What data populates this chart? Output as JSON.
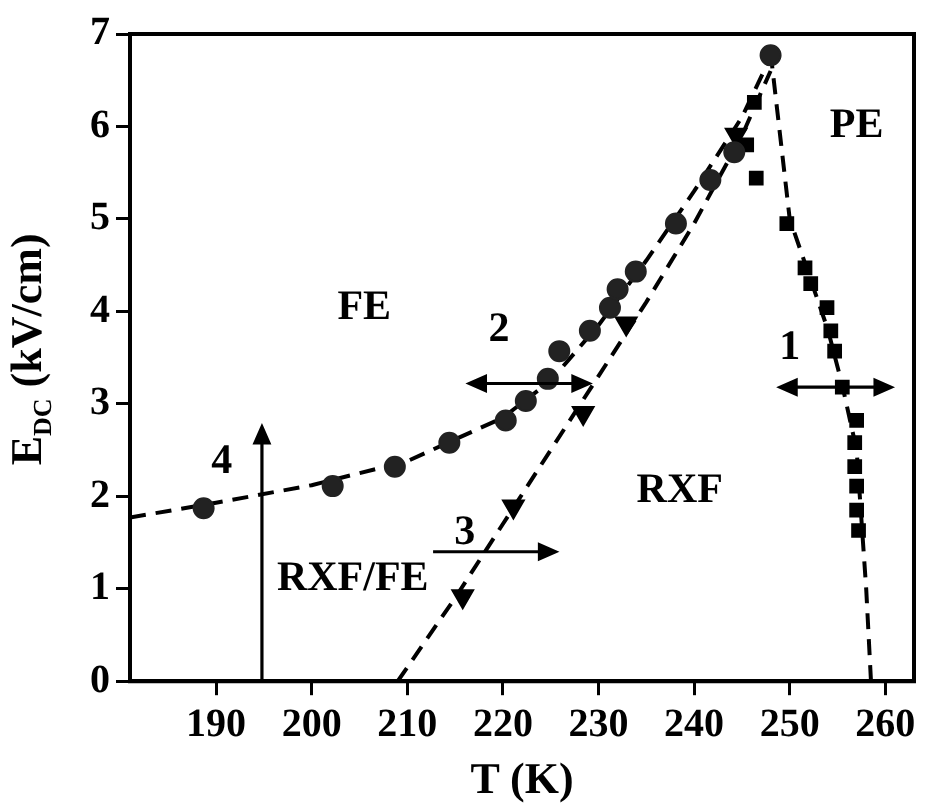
{
  "chart_data": {
    "type": "scatter",
    "xlabel": "T (K)",
    "ylabel": "E$_{DC}$ (kV/cm)",
    "xlim": [
      181,
      263
    ],
    "ylim": [
      0,
      7
    ],
    "xticks": [
      190,
      200,
      210,
      220,
      230,
      240,
      250,
      260
    ],
    "yticks": [
      0,
      1,
      2,
      3,
      4,
      5,
      6,
      7
    ],
    "grid": false,
    "legend": false,
    "series": [
      {
        "type": "line",
        "line_style": "dashed",
        "marker": "none",
        "color": "#000000",
        "x": [
          181,
          190,
          200,
          210,
          220,
          225,
          230,
          235,
          240,
          245,
          248
        ],
        "values": [
          1.77,
          1.93,
          2.12,
          2.38,
          2.85,
          3.25,
          3.85,
          4.55,
          5.3,
          6.1,
          6.75
        ]
      },
      {
        "type": "line",
        "line_style": "dashed",
        "marker": "none",
        "color": "#000000",
        "x": [
          209,
          215,
          220,
          225,
          230,
          235,
          240,
          245,
          248
        ],
        "values": [
          0,
          0.9,
          1.7,
          2.5,
          3.3,
          4.1,
          4.95,
          5.9,
          6.6
        ]
      },
      {
        "type": "line",
        "line_style": "dashed",
        "marker": "none",
        "color": "#000000",
        "x": [
          248,
          250,
          252,
          254,
          255.5,
          257,
          258,
          258.5
        ],
        "values": [
          6.8,
          5.0,
          4.4,
          3.8,
          3.2,
          2.5,
          1.0,
          0
        ]
      },
      {
        "type": "scatter",
        "marker": "circle",
        "color": "#222222",
        "x": [
          188.7,
          202.2,
          208.7,
          214.4,
          220.3,
          222.4,
          224.7,
          225.9,
          229.1,
          231.2,
          232,
          233.9,
          238.1,
          241.7,
          244.2,
          248
        ],
        "values": [
          1.87,
          2.11,
          2.32,
          2.58,
          2.82,
          3.03,
          3.27,
          3.57,
          3.79,
          4.04,
          4.24,
          4.43,
          4.95,
          5.42,
          5.72,
          6.77
        ]
      },
      {
        "type": "scatter",
        "marker": "square",
        "color": "#000000",
        "x": [
          246.3,
          245.5,
          246.5,
          249.7,
          251.6,
          252.2,
          253.9,
          254.3,
          254.7,
          255.5,
          257,
          256.8,
          256.8,
          257,
          257,
          257.2
        ],
        "values": [
          6.26,
          5.8,
          5.44,
          4.95,
          4.47,
          4.3,
          4.04,
          3.79,
          3.57,
          3.18,
          2.82,
          2.58,
          2.32,
          2.11,
          1.85,
          1.63
        ]
      },
      {
        "type": "scatter",
        "marker": "triangle",
        "color": "#000000",
        "x": [
          215.8,
          221.1,
          228.4,
          232.9,
          244.4
        ],
        "values": [
          0.92,
          1.89,
          2.9,
          3.87,
          5.91
        ]
      }
    ],
    "annotations": [
      "FE",
      "PE",
      "RXF",
      "RXF/FE",
      {
        "text": "1",
        "x": 255.5,
        "y": 3.18
      },
      {
        "text": "2",
        "x": 224.6,
        "y": 3.22
      },
      {
        "text": "3",
        "x": 217.7,
        "y": 1.4
      },
      {
        "text": "4",
        "x": 194.8,
        "y": 2.02
      }
    ]
  }
}
